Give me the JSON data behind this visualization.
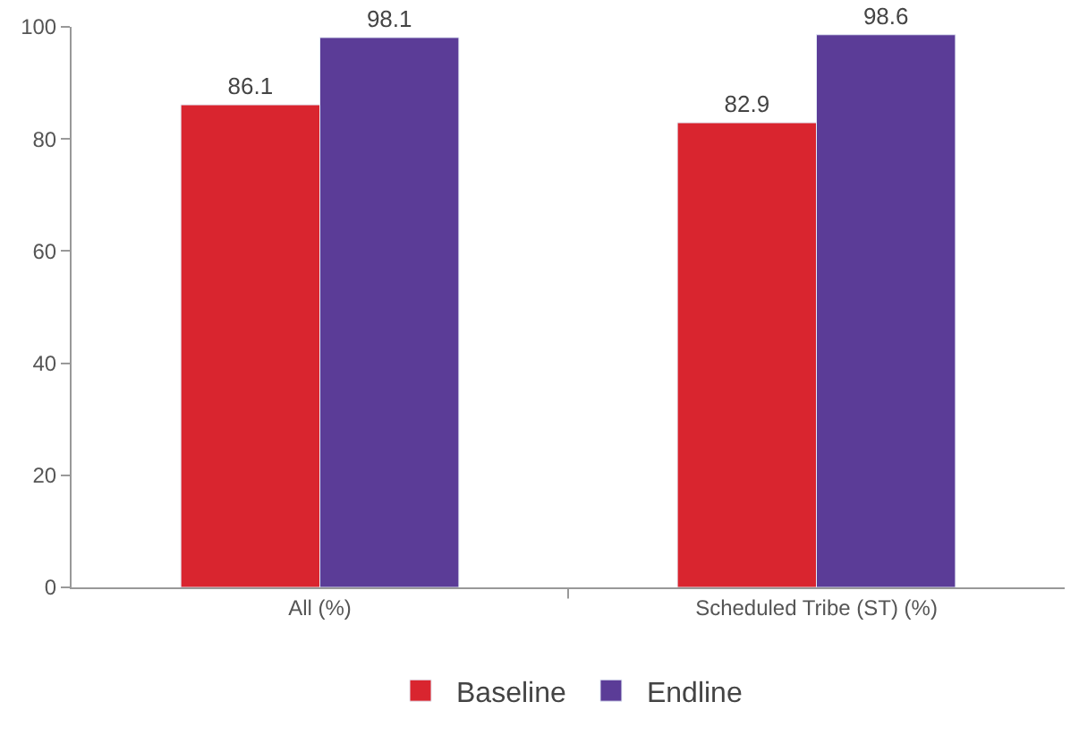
{
  "chart_data": {
    "type": "bar",
    "categories": [
      "All (%)",
      "Scheduled Tribe (ST) (%)"
    ],
    "series": [
      {
        "name": "Baseline",
        "color": "#d9252f",
        "values": [
          86.1,
          82.9
        ]
      },
      {
        "name": "Endline",
        "color": "#5b3c97",
        "values": [
          98.1,
          98.6
        ]
      }
    ],
    "ylim": [
      0,
      100
    ],
    "yticks": [
      0,
      20,
      40,
      60,
      80,
      100
    ],
    "legend": "bottom",
    "data_labels": true
  }
}
